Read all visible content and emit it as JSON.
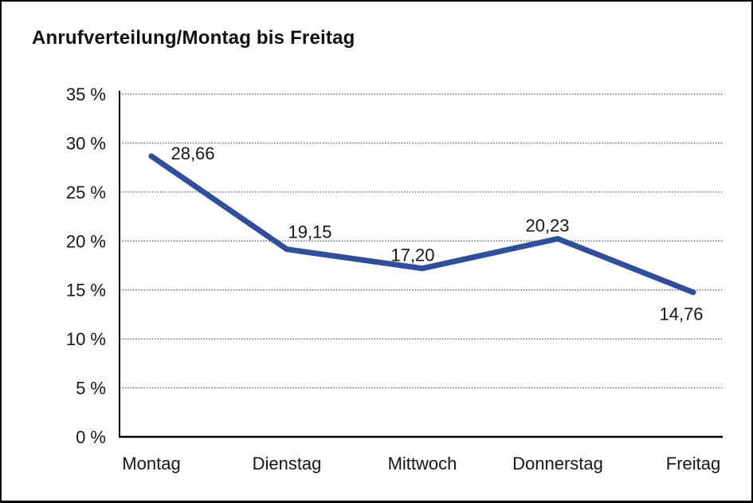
{
  "title": "Anrufverteilung/Montag bis Freitag",
  "colors": {
    "line": "#2F4F9E",
    "grid": "#4a4a4a",
    "axis": "#000000",
    "text": "#161616",
    "background": "#ffffff",
    "border": "#000000"
  },
  "chart_data": {
    "type": "line",
    "title": "Anrufverteilung/Montag bis Freitag",
    "categories": [
      "Montag",
      "Dienstag",
      "Mittwoch",
      "Donnerstag",
      "Freitag"
    ],
    "values": [
      28.66,
      19.15,
      17.2,
      20.23,
      14.76
    ],
    "value_labels": [
      "28,66",
      "19,15",
      "17,20",
      "20,23",
      "14,76"
    ],
    "xlabel": "",
    "ylabel": "",
    "ylim": [
      0,
      35
    ],
    "y_tick_values": [
      0,
      5,
      10,
      15,
      20,
      25,
      30,
      35
    ],
    "y_tick_labels": [
      "0 %",
      "5 %",
      "10 %",
      "15 %",
      "20 %",
      "25 %",
      "30 %",
      "35 %"
    ],
    "grid": "horizontal-dotted",
    "legend": "none",
    "series_color": "#2F4F9E"
  }
}
